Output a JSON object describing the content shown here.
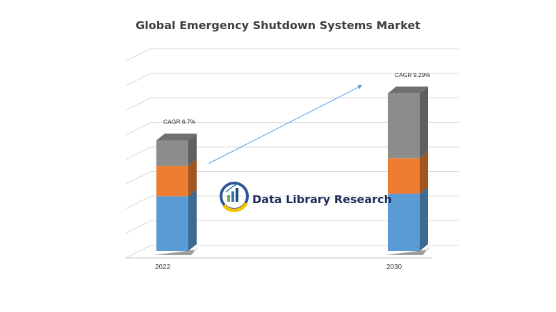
{
  "chart_data": {
    "type": "bar",
    "stacked": true,
    "three_d": true,
    "title": "Global Emergency Shutdown Systems Market",
    "categories": [
      "2022",
      "2030"
    ],
    "series": [
      {
        "values": [
          43,
          45
        ],
        "color": "#5b9bd5"
      },
      {
        "values": [
          24,
          28
        ],
        "color": "#ed7d31"
      },
      {
        "values": [
          20,
          51
        ],
        "color": "#8c8c8c"
      }
    ],
    "annotations": [
      {
        "category": "2022",
        "text": "CAGR 6.7%"
      },
      {
        "category": "2030",
        "text": "CAGR  9.29%"
      }
    ],
    "ylim": [
      0,
      155
    ],
    "grid": true,
    "y_tick_labels_shown": false,
    "trend_arrow": {
      "from": "2022",
      "to": "2030",
      "color": "#5b9bd5"
    }
  },
  "logo": {
    "text": "Data Library Research",
    "icon": "bar-chart-globe-icon",
    "colors": {
      "ring_blue": "#2f5597",
      "ring_gold": "#f2c200",
      "bar_green": "#70ad47",
      "bar_blue": "#2e75b6"
    }
  }
}
